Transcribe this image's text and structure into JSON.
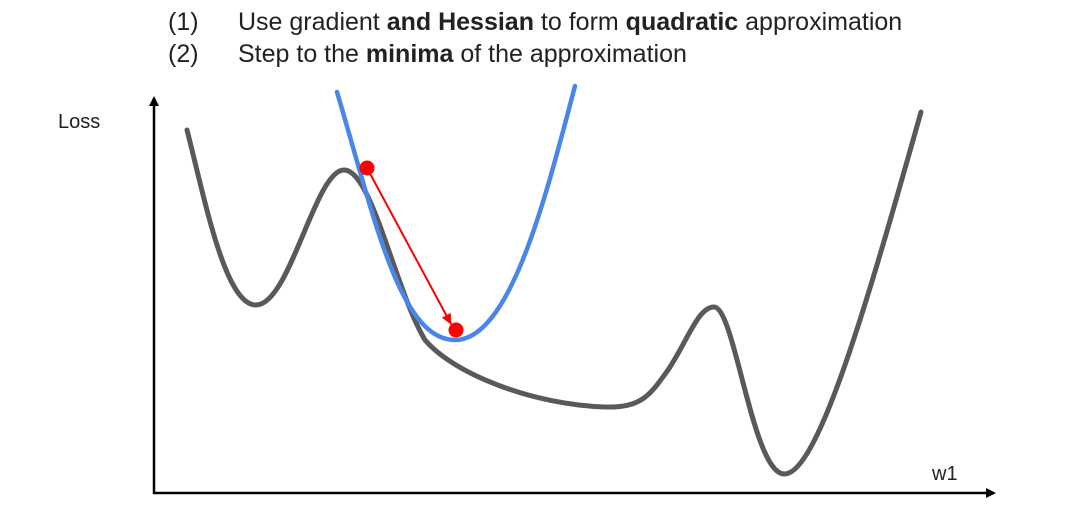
{
  "steps": [
    {
      "number": "(1)",
      "parts": [
        {
          "text": "Use gradient ",
          "bold": false
        },
        {
          "text": "and Hessian",
          "bold": true
        },
        {
          "text": " to form ",
          "bold": false
        },
        {
          "text": "quadratic",
          "bold": true
        },
        {
          "text": " approximation",
          "bold": false
        }
      ]
    },
    {
      "number": "(2)",
      "parts": [
        {
          "text": "Step to the ",
          "bold": false
        },
        {
          "text": "minima",
          "bold": true
        },
        {
          "text": " of the approximation",
          "bold": false
        }
      ]
    }
  ],
  "axes": {
    "y_label": "Loss",
    "x_label": "w1"
  },
  "colors": {
    "loss_curve": "#595959",
    "quadratic_approx": "#4a86e8",
    "step_arrow": "#ff0000",
    "axis": "#000000"
  }
}
